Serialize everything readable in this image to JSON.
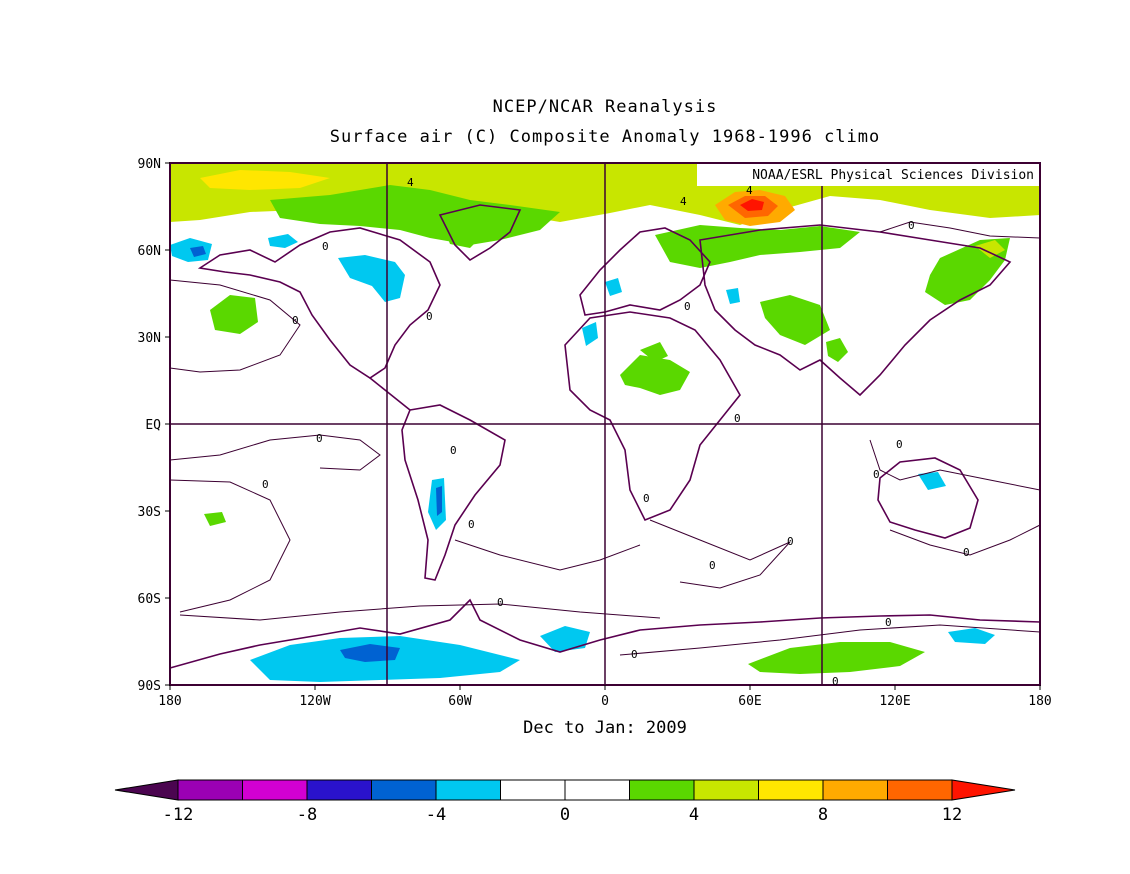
{
  "title": "NCEP/NCAR Reanalysis",
  "subtitle": "Surface air (C) Composite Anomaly 1968-1996 climo",
  "attribution": "NOAA/ESRL Physical Sciences Division",
  "footer": "Dec to Jan: 2009",
  "lat_labels": [
    "90N",
    "60N",
    "30N",
    "EQ",
    "30S",
    "60S",
    "90S"
  ],
  "lon_labels": [
    "180",
    "120W",
    "60W",
    "0",
    "60E",
    "120E",
    "180"
  ],
  "contour_labels": {
    "zero": "0",
    "four": "4"
  },
  "colorbar": {
    "labels": [
      "-12",
      "-8",
      "-4",
      "0",
      "4",
      "8",
      "12"
    ],
    "colors": [
      "#4b0550",
      "#9b00b4",
      "#d200d2",
      "#2a12cc",
      "#0062d2",
      "#00c8f0",
      "#ffffff",
      "#ffffff",
      "#5ad800",
      "#c8e600",
      "#ffe600",
      "#ffaa00",
      "#ff6600",
      "#ff1400"
    ]
  },
  "colors": {
    "frame": "#3c0032",
    "coast": "#5a0050",
    "green": "#5ad800",
    "yellowgreen": "#c8e600",
    "yellow": "#ffe600",
    "orange": "#ffaa00",
    "redorange": "#ff6600",
    "red": "#ff1400",
    "cyan": "#00c8f0",
    "blue": "#0062d2"
  }
}
